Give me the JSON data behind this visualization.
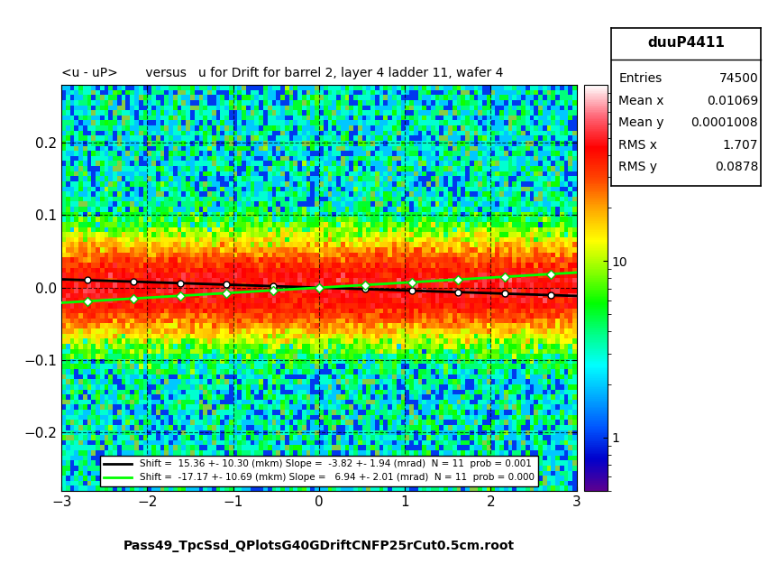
{
  "title": "<u - uP>       versus   u for Drift for barrel 2, layer 4 ladder 11, wafer 4",
  "xlabel": "Pass49_TpcSsd_QPlotsG40GDriftCNFP25rCut0.5cm.root",
  "stat_box_title": "duuP4411",
  "entries": "74500",
  "mean_x": "0.01069",
  "mean_y": "0.0001008",
  "rms_x": "1.707",
  "rms_y": "0.0878",
  "xmin": -3,
  "xmax": 3,
  "ymin": -0.28,
  "ymax": 0.28,
  "colorbar_min": 0.5,
  "colorbar_max": 100,
  "legend_line1": "Shift =  15.36 +- 10.30 (mkm) Slope =  -3.82 +- 1.94 (mrad)  N = 11  prob = 0.001",
  "legend_line2": "Shift =  -17.17 +- 10.69 (mkm) Slope =   6.94 +- 2.01 (mrad)  N = 11  prob = 0.000",
  "black_line_slope": -0.00382,
  "black_line_intercept": 0.0,
  "green_line_slope": 0.00694,
  "green_line_intercept": 0.0,
  "background_color": "#ffffff",
  "seed": 42
}
